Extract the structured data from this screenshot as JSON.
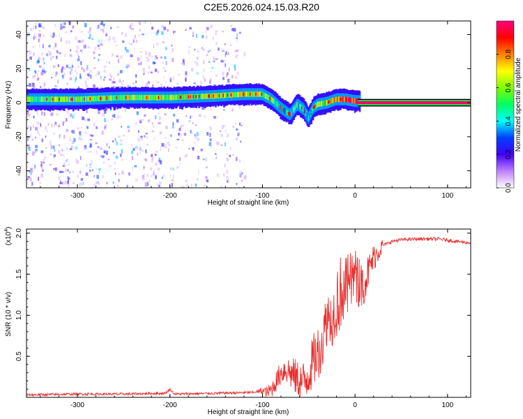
{
  "title": "C2E5.2026.024.15.03.R20",
  "chart_data": [
    {
      "type": "heatmap",
      "xlabel": "Height of straight line (km)",
      "ylabel": "Frequency (Hz)",
      "xlim": [
        -355,
        125
      ],
      "ylim": [
        -50,
        48
      ],
      "xticks": [
        -300,
        -200,
        -100,
        0,
        100
      ],
      "yticks": [
        -40,
        -20,
        0,
        20,
        40
      ],
      "xtick_labels": [
        "-300",
        "-200",
        "-100",
        "0",
        "100"
      ],
      "ytick_labels": [
        "-40",
        "-20",
        "0",
        "20",
        "40"
      ],
      "grid": false,
      "colorbar": {
        "label": "Normalized spectral amplitude",
        "range": [
          0,
          1
        ],
        "ticks": [
          0.0,
          0.2,
          0.4,
          0.6,
          0.8
        ],
        "tick_labels": [
          "0.0",
          "0.2",
          "0.4",
          "0.6",
          "0.8"
        ],
        "colors": [
          "#ffffff",
          "#c080ff",
          "#4000ff",
          "#0040ff",
          "#00ffff",
          "#00ff60",
          "#80ff00",
          "#ffff00",
          "#ff8000",
          "#ff0000",
          "#ff0080"
        ]
      },
      "ridge": {
        "x": [
          -355,
          -300,
          -250,
          -200,
          -150,
          -120,
          -100,
          -90,
          -80,
          -70,
          -62,
          -55,
          -50,
          -45,
          -40,
          -30,
          -20,
          -10,
          0,
          125
        ],
        "frequency": [
          2,
          2,
          3,
          3,
          4,
          5,
          5,
          2,
          -3,
          -7,
          -1,
          -4,
          -9,
          -3,
          -1,
          0,
          2,
          2,
          1,
          0
        ],
        "amplitude": [
          0.5,
          0.55,
          0.6,
          0.6,
          0.6,
          0.65,
          0.6,
          0.5,
          0.4,
          0.4,
          0.5,
          0.4,
          0.3,
          0.5,
          0.6,
          0.7,
          0.8,
          0.85,
          0.9,
          0.95
        ]
      },
      "noise_region_x": [
        -355,
        -120
      ]
    },
    {
      "type": "line",
      "xlabel": "Height of straight line (km)",
      "ylabel": "SNR (10 * v/v)",
      "y_multiplier": "(x10",
      "y_multiplier_exp": "4",
      "y_multiplier_close": ")",
      "xlim": [
        -355,
        125
      ],
      "ylim": [
        0,
        2.05
      ],
      "xticks": [
        -300,
        -200,
        -100,
        0,
        100
      ],
      "yticks": [
        0.5,
        1.0,
        1.5,
        2.0
      ],
      "xtick_labels": [
        "-300",
        "-200",
        "-100",
        "0",
        "100"
      ],
      "ytick_labels": [
        "0.5",
        "1.0",
        "1.5",
        "2.0"
      ],
      "grid": false,
      "series": [
        {
          "color": "#e8302f",
          "x": [
            -355,
            -300,
            -250,
            -205,
            -200,
            -195,
            -150,
            -110,
            -100,
            -95,
            -90,
            -85,
            -80,
            -75,
            -70,
            -65,
            -60,
            -55,
            -50,
            -45,
            -40,
            -35,
            -30,
            -25,
            -20,
            -15,
            -10,
            -5,
            0,
            5,
            10,
            20,
            30,
            40,
            50,
            70,
            90,
            110,
            125
          ],
          "y": [
            0.03,
            0.04,
            0.04,
            0.05,
            0.1,
            0.04,
            0.05,
            0.06,
            0.08,
            0.06,
            0.1,
            0.2,
            0.3,
            0.35,
            0.3,
            0.25,
            0.2,
            0.18,
            0.3,
            0.45,
            0.55,
            0.7,
            1.0,
            0.95,
            1.15,
            1.3,
            1.3,
            1.4,
            1.5,
            1.35,
            1.4,
            1.7,
            1.85,
            1.9,
            1.92,
            1.93,
            1.93,
            1.9,
            1.88
          ]
        }
      ]
    }
  ]
}
